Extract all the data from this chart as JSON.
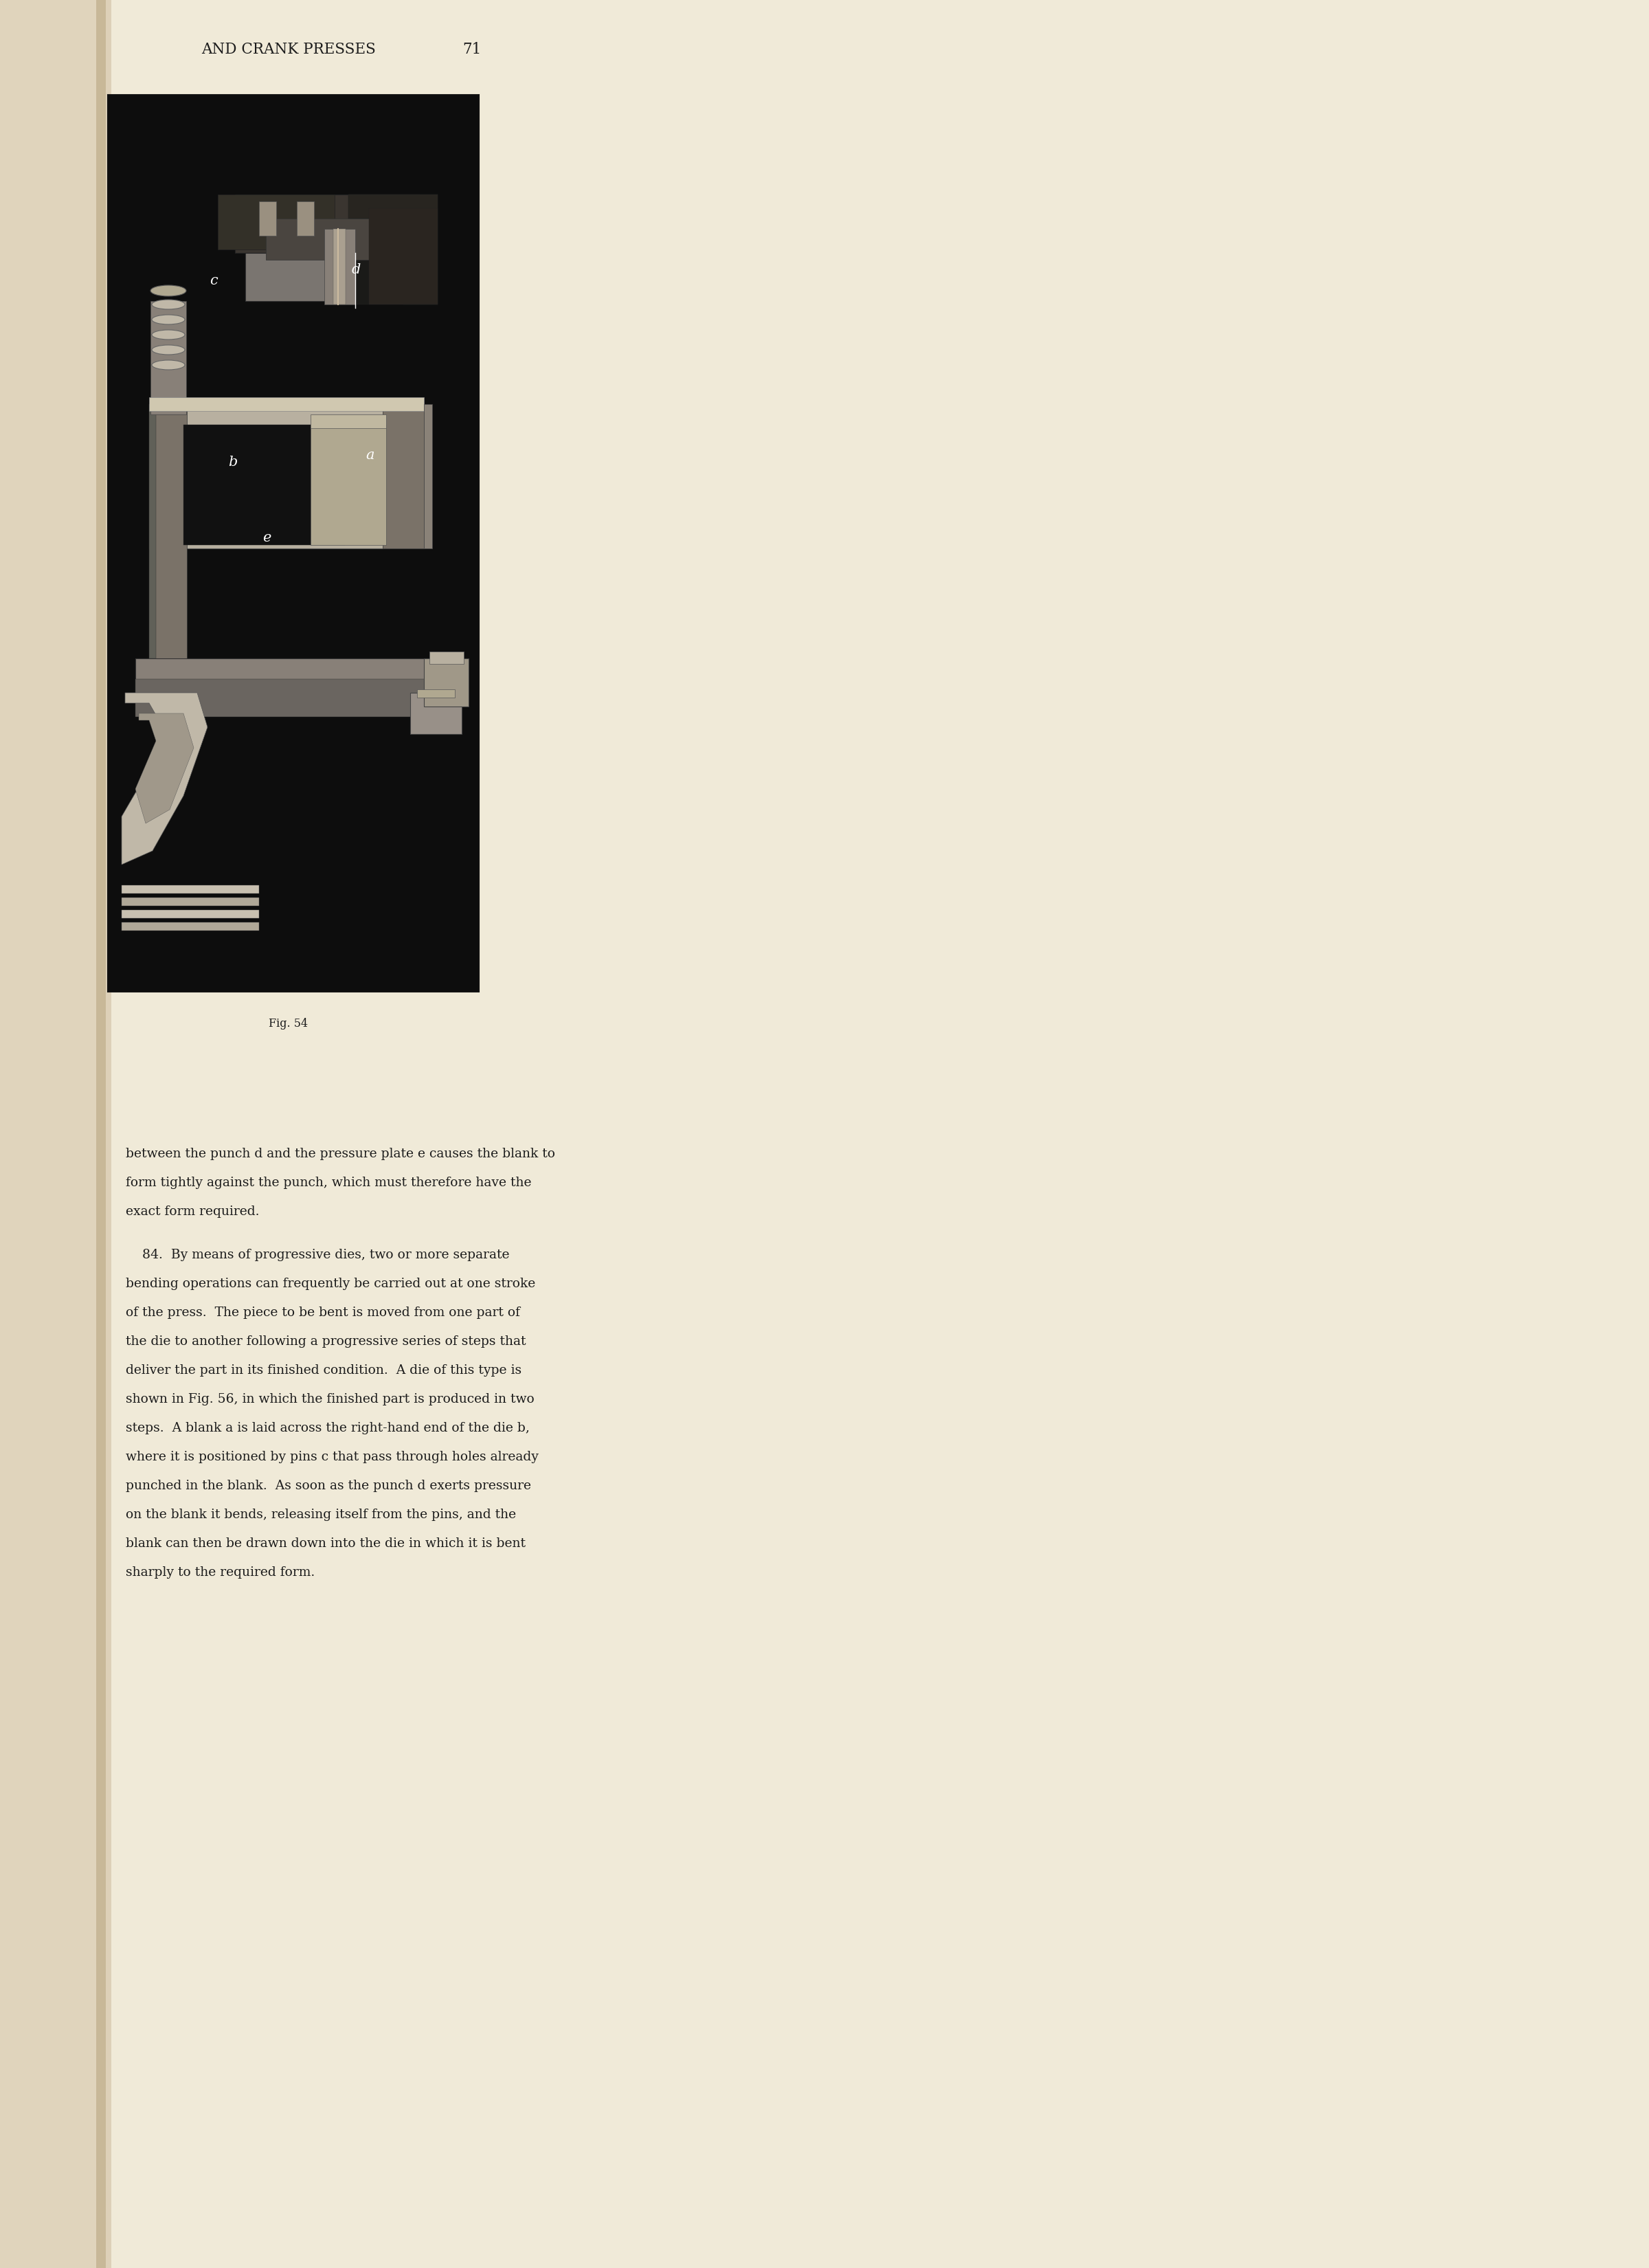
{
  "page_bg_color": "#f0ead8",
  "left_gutter_color": "#e0d4bc",
  "spine_color": "#c8b898",
  "spine_bright": "#ddd0b8",
  "header_text": "AND CRANK PRESSES",
  "page_number": "71",
  "fig_caption": "Fig. 54",
  "header_fontsize": 15.5,
  "page_num_fontsize": 15.5,
  "caption_fontsize": 11.5,
  "body_fontsize": 13.5,
  "body_text_color": "#1c1c1c",
  "header_color": "#1c1c1c",
  "image_bg_color": "#0d0d0d",
  "image_border_color": "#111111",
  "para1_lines": [
    "between the punch d and the pressure plate e causes the blank to",
    "form tightly against the punch, which must therefore have the",
    "exact form required."
  ],
  "para2_lines": [
    "    84.  By means of progressive dies, two or more separate",
    "bending operations can frequently be carried out at one stroke",
    "of the press.  The piece to be bent is moved from one part of",
    "the die to another following a progressive series of steps that",
    "deliver the part in its finished condition.  A die of this type is",
    "shown in Fig. 56, in which the finished part is produced in two",
    "steps.  A blank a is laid across the right-hand end of the die b,",
    "where it is positioned by pins c that pass through holes already",
    "punched in the blank.  As soon as the punch d exerts pressure",
    "on the blank it bends, releasing itself from the pins, and the",
    "blank can then be drawn down into the die in which it is bent",
    "sharply to the required form."
  ]
}
